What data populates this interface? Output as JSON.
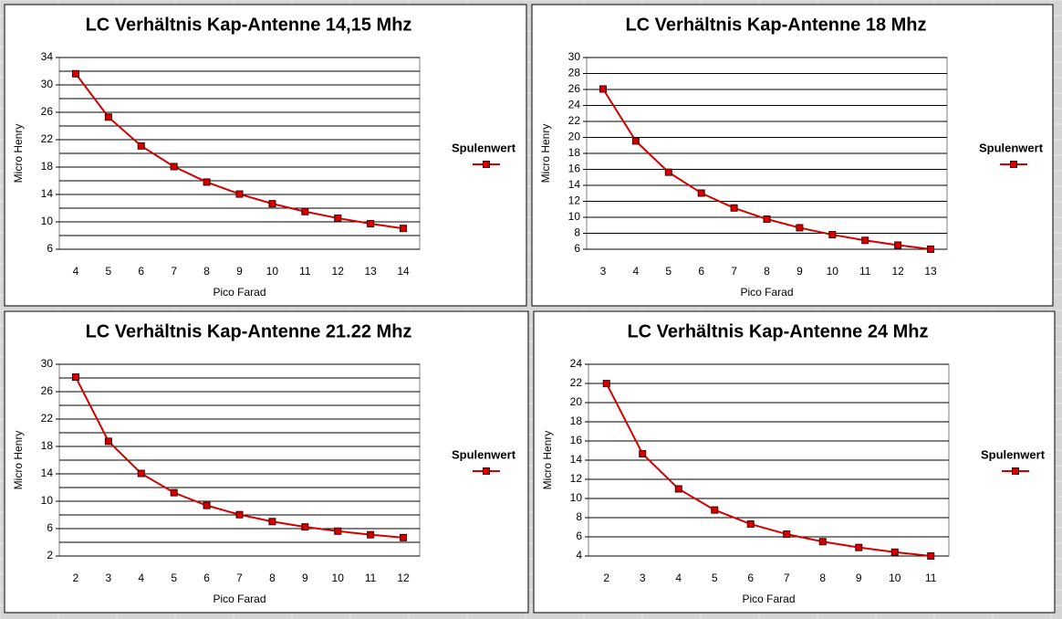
{
  "chart_data": [
    {
      "type": "line",
      "title": "LC Verhältnis Kap-Antenne 14,15 Mhz",
      "x_label": "Pico Farad",
      "y_label": "Micro Henry",
      "categories": [
        "4",
        "5",
        "6",
        "7",
        "8",
        "9",
        "10",
        "11",
        "12",
        "13",
        "14"
      ],
      "series": [
        {
          "name": "Spulenwert",
          "color": "#d40000",
          "values": [
            31.63,
            25.3,
            21.09,
            18.07,
            15.81,
            14.06,
            12.65,
            11.5,
            10.54,
            9.73,
            9.04
          ]
        }
      ],
      "ylim": [
        6,
        34
      ],
      "yticks": [
        6,
        10,
        14,
        18,
        22,
        26,
        30,
        34
      ],
      "grid": true,
      "minor_grid": true,
      "legend": "right"
    },
    {
      "type": "line",
      "title": "LC Verhältnis Kap-Antenne 18 Mhz",
      "x_label": "Pico Farad",
      "y_label": "Micro Henry",
      "categories": [
        "3",
        "4",
        "5",
        "6",
        "7",
        "8",
        "9",
        "10",
        "11",
        "12",
        "13"
      ],
      "series": [
        {
          "name": "Spulenwert",
          "color": "#d40000",
          "values": [
            26.06,
            19.55,
            15.64,
            13.03,
            11.17,
            9.77,
            8.69,
            7.82,
            7.11,
            6.52,
            6.01
          ]
        }
      ],
      "ylim": [
        6,
        30
      ],
      "yticks": [
        6,
        8,
        10,
        12,
        14,
        16,
        18,
        20,
        22,
        24,
        26,
        28,
        30
      ],
      "grid": true,
      "minor_grid": false,
      "legend": "right"
    },
    {
      "type": "line",
      "title": "LC Verhältnis Kap-Antenne 21.22 Mhz",
      "x_label": "Pico Farad",
      "y_label": "Micro Henry",
      "categories": [
        "2",
        "3",
        "4",
        "5",
        "6",
        "7",
        "8",
        "9",
        "10",
        "11",
        "12"
      ],
      "series": [
        {
          "name": "Spulenwert",
          "color": "#d40000",
          "values": [
            28.13,
            18.75,
            14.06,
            11.25,
            9.38,
            8.04,
            7.03,
            6.25,
            5.63,
            5.11,
            4.69
          ]
        }
      ],
      "ylim": [
        2,
        30
      ],
      "yticks": [
        2,
        6,
        10,
        14,
        18,
        22,
        26,
        30
      ],
      "grid": true,
      "minor_grid": true,
      "legend": "right"
    },
    {
      "type": "line",
      "title": "LC Verhältnis Kap-Antenne 24 Mhz",
      "x_label": "Pico Farad",
      "y_label": "Micro Henry",
      "categories": [
        "2",
        "3",
        "4",
        "5",
        "6",
        "7",
        "8",
        "9",
        "10",
        "11"
      ],
      "series": [
        {
          "name": "Spulenwert",
          "color": "#d40000",
          "values": [
            21.99,
            14.66,
            11.0,
            8.8,
            7.33,
            6.28,
            5.5,
            4.89,
            4.4,
            4.0
          ]
        }
      ],
      "ylim": [
        4,
        24
      ],
      "yticks": [
        4,
        6,
        8,
        10,
        12,
        14,
        16,
        18,
        20,
        22,
        24
      ],
      "grid": true,
      "minor_grid": false,
      "legend": "right"
    }
  ]
}
